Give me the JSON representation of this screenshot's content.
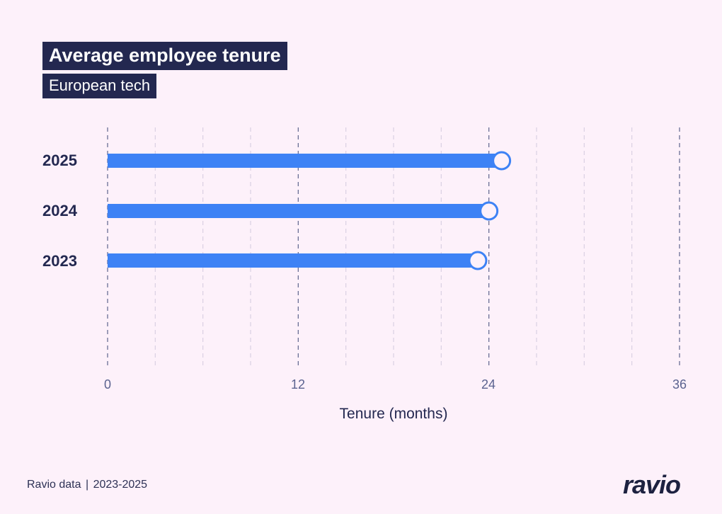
{
  "header": {
    "title": "Average employee tenure",
    "subtitle": "European tech"
  },
  "footer": {
    "source": "Ravio data",
    "separator": "|",
    "period": "2023-2025",
    "logo": "ravio"
  },
  "colors": {
    "background": "#fdf1fa",
    "bar": "#3d82f5",
    "marker_fill": "#fdf1fa",
    "navy": "#232850",
    "grid_major": "#6a6f95",
    "grid_minor": "#d9d0e3"
  },
  "chart_data": {
    "type": "bar",
    "orientation": "horizontal",
    "style": "lollipop",
    "title": "Average employee tenure",
    "subtitle": "European tech",
    "categories": [
      "2025",
      "2024",
      "2023"
    ],
    "values": [
      24.8,
      24.0,
      23.3
    ],
    "xlabel": "Tenure (months)",
    "ylabel": "",
    "xlim": [
      0,
      36
    ],
    "xticks": [
      "0",
      "12",
      "24",
      "36"
    ],
    "minor_grid_step": 3,
    "grid": true,
    "legend": "none"
  }
}
